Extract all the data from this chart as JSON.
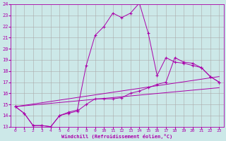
{
  "xlabel": "Windchill (Refroidissement éolien,°C)",
  "bg_color": "#cce8e8",
  "line_color": "#aa00aa",
  "grid_color": "#aaaaaa",
  "xlim": [
    -0.5,
    23.5
  ],
  "ylim": [
    13,
    24
  ],
  "yticks": [
    13,
    14,
    15,
    16,
    17,
    18,
    19,
    20,
    21,
    22,
    23,
    24
  ],
  "xticks": [
    0,
    1,
    2,
    3,
    4,
    5,
    6,
    7,
    8,
    9,
    10,
    11,
    12,
    13,
    14,
    15,
    16,
    17,
    18,
    19,
    20,
    21,
    22,
    23
  ],
  "curves": [
    {
      "x": [
        0,
        1,
        2,
        3,
        4,
        5,
        6,
        7,
        8,
        9,
        10,
        11,
        12,
        13,
        14,
        15,
        16,
        17,
        18,
        19,
        20,
        21,
        22,
        23
      ],
      "y": [
        14.8,
        14.2,
        13.1,
        13.1,
        13.0,
        14.0,
        14.3,
        14.5,
        18.5,
        21.2,
        22.0,
        23.2,
        22.8,
        23.2,
        24.1,
        21.4,
        17.6,
        19.2,
        18.8,
        18.7,
        18.5,
        18.3,
        17.5,
        17.0
      ],
      "has_markers": true
    },
    {
      "x": [
        0,
        1,
        2,
        3,
        4,
        5,
        6,
        7,
        8,
        9,
        10,
        11,
        12,
        13,
        14,
        15,
        16,
        17,
        18,
        19,
        20,
        21,
        22,
        23
      ],
      "y": [
        14.8,
        14.2,
        13.1,
        13.1,
        13.0,
        14.0,
        14.2,
        14.4,
        15.0,
        15.5,
        15.5,
        15.5,
        15.6,
        16.0,
        16.2,
        16.5,
        16.8,
        17.0,
        19.2,
        18.8,
        18.7,
        18.3,
        17.5,
        17.0
      ],
      "has_markers": true
    },
    {
      "x": [
        0,
        23
      ],
      "y": [
        14.8,
        17.5
      ],
      "has_markers": false
    },
    {
      "x": [
        0,
        23
      ],
      "y": [
        14.8,
        16.5
      ],
      "has_markers": false
    }
  ]
}
